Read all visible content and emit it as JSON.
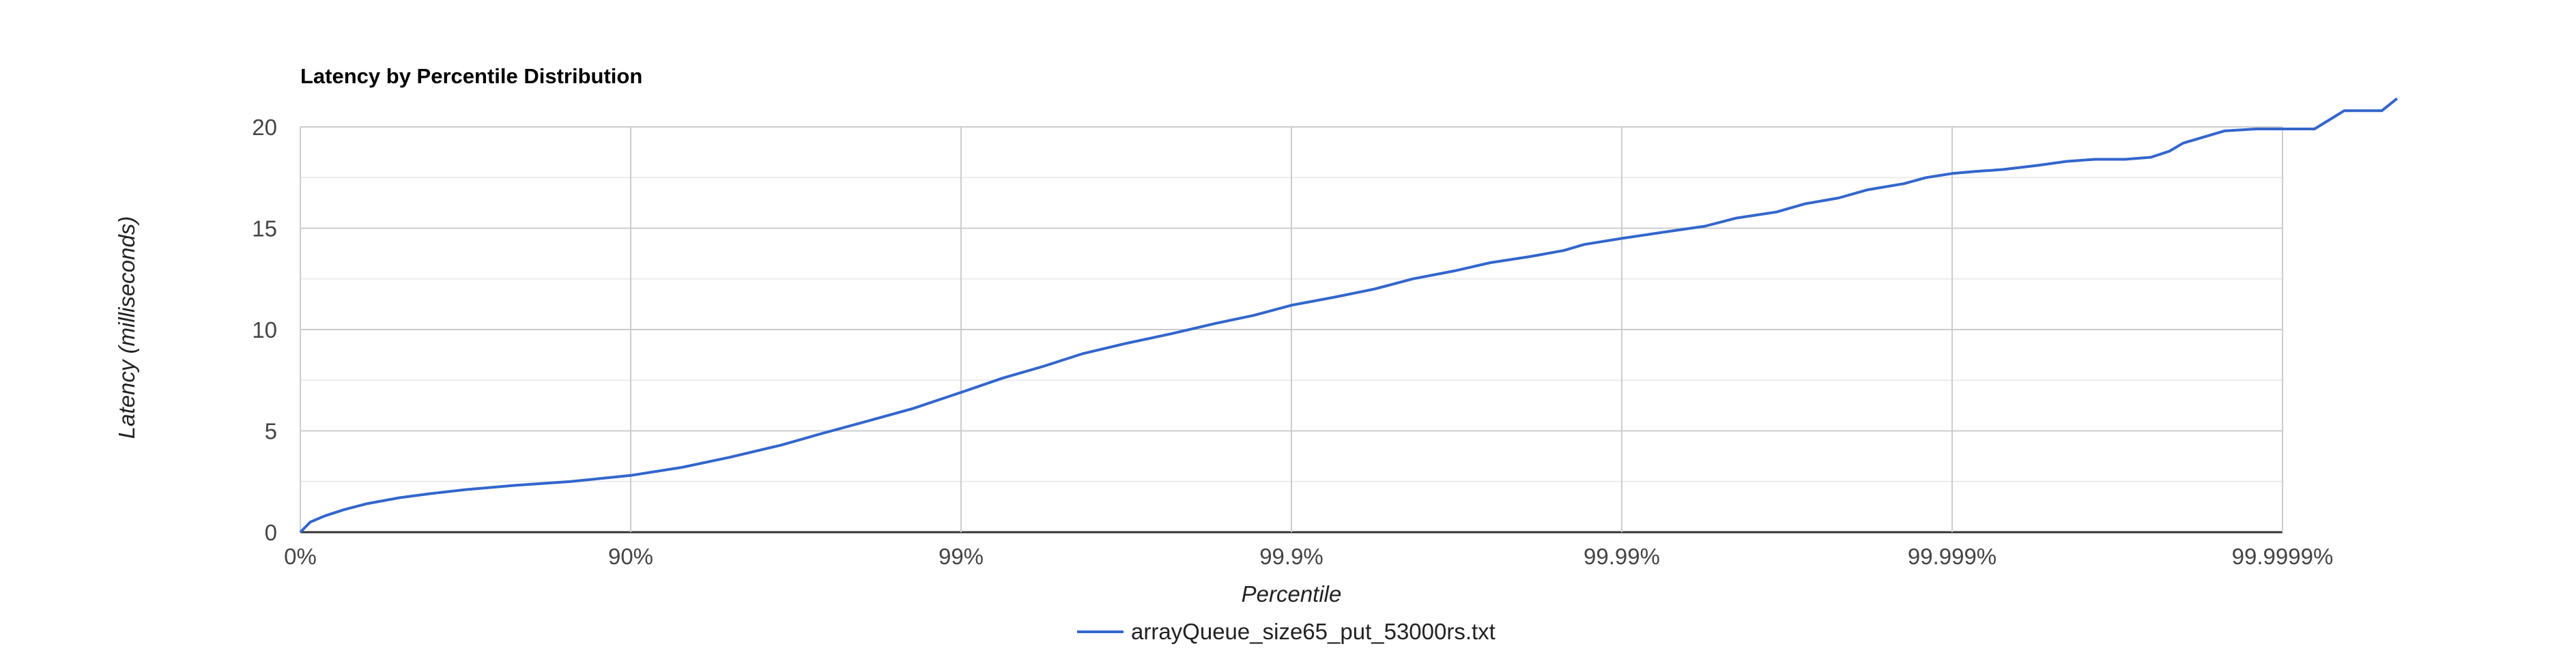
{
  "chart_data": {
    "type": "line",
    "title": "Latency by Percentile Distribution",
    "xlabel": "Percentile",
    "ylabel": "Latency (milliseconds)",
    "x_scale": "log-percentile",
    "x_ticks": [
      "0%",
      "90%",
      "99%",
      "99.9%",
      "99.99%",
      "99.999%",
      "99.9999%"
    ],
    "x_tick_percentiles": [
      0,
      90,
      99,
      99.9,
      99.99,
      99.999,
      99.9999
    ],
    "ylim": [
      0,
      20
    ],
    "y_ticks": [
      "0",
      "5",
      "10",
      "15",
      "20"
    ],
    "y_tick_values": [
      0,
      5,
      10,
      15,
      20
    ],
    "grid": true,
    "legend": "bottom",
    "colors": {
      "series": "#3366cc",
      "grid_major": "#cccccc",
      "grid_minor": "#ebebeb",
      "baseline": "#333333"
    },
    "series": [
      {
        "name": "arrayQueue_size65_put_53000rs.txt",
        "x": [
          0,
          6.7,
          15.6,
          25.9,
          36.9,
          49.9,
          59.4,
          68.4,
          77.1,
          84.8,
          90,
          93.0,
          95.0,
          96.5,
          97.4,
          98.1,
          98.6,
          99,
          99.25,
          99.44,
          99.57,
          99.68,
          99.77,
          99.83,
          99.87,
          99.9,
          99.926,
          99.944,
          99.957,
          99.968,
          99.975,
          99.981,
          99.985,
          99.987,
          99.99,
          99.9925,
          99.9944,
          99.9955,
          99.9966,
          99.9972,
          99.9978,
          99.9982,
          99.9986,
          99.9988,
          99.999,
          99.99915,
          99.9993,
          99.99945,
          99.99955,
          99.99963,
          99.9997,
          99.99975,
          99.99978,
          99.9998,
          99.99985,
          99.99988,
          99.9999,
          99.99992,
          99.999935,
          99.99995,
          99.999955
        ],
        "values": [
          0,
          0.5,
          0.8,
          1.1,
          1.4,
          1.7,
          1.9,
          2.1,
          2.3,
          2.5,
          2.8,
          3.2,
          3.7,
          4.3,
          4.9,
          5.5,
          6.1,
          6.9,
          7.6,
          8.2,
          8.8,
          9.3,
          9.8,
          10.3,
          10.7,
          11.2,
          11.6,
          12.0,
          12.5,
          12.9,
          13.3,
          13.6,
          13.9,
          14.2,
          14.5,
          14.8,
          15.1,
          15.5,
          15.8,
          16.2,
          16.5,
          16.9,
          17.2,
          17.5,
          17.7,
          17.8,
          17.9,
          18.1,
          18.3,
          18.4,
          18.4,
          18.5,
          18.8,
          19.2,
          19.8,
          19.9,
          19.9,
          19.9,
          20.8,
          20.8,
          21.4
        ]
      }
    ]
  }
}
